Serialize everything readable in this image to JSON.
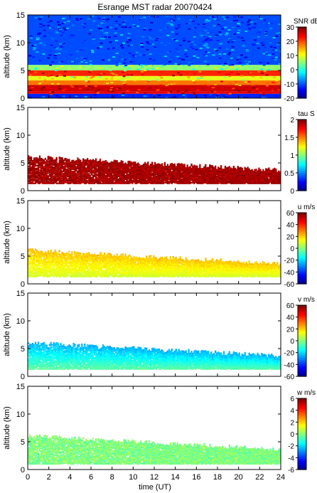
{
  "figure": {
    "title": "Esrange MST radar 20070424",
    "xlabel": "time (UT)",
    "ylabel": "altitude (km)"
  },
  "chart_data": [
    {
      "type": "heatmap",
      "quantity": "SNR",
      "colorbar_label": "SNR dB",
      "colorbar_ticks": [
        "30",
        "20",
        "10",
        "0",
        "-10",
        "-20"
      ],
      "clim": [
        -20,
        30
      ],
      "xlim": [
        0,
        24
      ],
      "ylim": [
        0,
        15
      ],
      "x_ticks": [
        0,
        2,
        4,
        6,
        8,
        10,
        12,
        14,
        16,
        18,
        20,
        22,
        24
      ],
      "y_ticks": [
        0,
        5,
        10,
        15
      ],
      "bands": [
        {
          "x": [
            0,
            24
          ],
          "y": [
            0.0,
            0.8
          ],
          "value": -12
        },
        {
          "x": [
            0,
            24
          ],
          "y": [
            0.8,
            1.2
          ],
          "value": 25
        },
        {
          "x": [
            0,
            24
          ],
          "y": [
            1.2,
            2.4
          ],
          "value": 26
        },
        {
          "x": [
            0,
            24
          ],
          "y": [
            2.4,
            3.2
          ],
          "value": 18
        },
        {
          "x": [
            0,
            24
          ],
          "y": [
            3.2,
            4.0
          ],
          "value": 10
        },
        {
          "x": [
            0,
            24
          ],
          "y": [
            4.0,
            5.0
          ],
          "value": 22
        },
        {
          "x": [
            0,
            24
          ],
          "y": [
            5.0,
            6.0
          ],
          "value": 6
        },
        {
          "x": [
            0,
            24
          ],
          "y": [
            6.0,
            15.0
          ],
          "value": -10
        }
      ]
    },
    {
      "type": "heatmap",
      "quantity": "tau",
      "colorbar_label": "tau S",
      "colorbar_ticks": [
        "2",
        "1.5",
        "1",
        "0.5",
        "0"
      ],
      "clim": [
        0,
        2
      ],
      "xlim": [
        0,
        24
      ],
      "ylim": [
        0,
        15
      ],
      "x_ticks": [
        0,
        2,
        4,
        6,
        8,
        10,
        12,
        14,
        16,
        18,
        20,
        22,
        24
      ],
      "y_ticks": [
        0,
        5,
        10,
        15
      ],
      "region": {
        "x": [
          0,
          24
        ],
        "y_bottom": 1.2,
        "y_top_start": 6.0,
        "y_top_end": 3.5
      },
      "value": 2
    },
    {
      "type": "heatmap",
      "quantity": "u",
      "colorbar_label": "u m/s",
      "colorbar_ticks": [
        "60",
        "40",
        "20",
        "0",
        "-20",
        "-40",
        "-60"
      ],
      "clim": [
        -60,
        60
      ],
      "xlim": [
        0,
        24
      ],
      "ylim": [
        0,
        15
      ],
      "x_ticks": [
        0,
        2,
        4,
        6,
        8,
        10,
        12,
        14,
        16,
        18,
        20,
        22,
        24
      ],
      "y_ticks": [
        0,
        5,
        10,
        15
      ],
      "region": {
        "x": [
          0,
          24
        ],
        "y_bottom": 1.2,
        "y_top_start": 6.0,
        "y_top_end": 3.5
      },
      "value_low": 10,
      "value_high": 22
    },
    {
      "type": "heatmap",
      "quantity": "v",
      "colorbar_label": "v m/s",
      "colorbar_ticks": [
        "60",
        "40",
        "20",
        "0",
        "-20",
        "-40",
        "-60"
      ],
      "clim": [
        -60,
        60
      ],
      "xlim": [
        0,
        24
      ],
      "ylim": [
        0,
        15
      ],
      "x_ticks": [
        0,
        2,
        4,
        6,
        8,
        10,
        12,
        14,
        16,
        18,
        20,
        22,
        24
      ],
      "y_ticks": [
        0,
        5,
        10,
        15
      ],
      "region": {
        "x": [
          0,
          24
        ],
        "y_bottom": 1.2,
        "y_top_start": 6.0,
        "y_top_end": 3.5
      },
      "value_low": -4,
      "value_high": -24
    },
    {
      "type": "heatmap",
      "quantity": "w",
      "colorbar_label": "w m/s",
      "colorbar_ticks": [
        "6",
        "4",
        "2",
        "0",
        "-2",
        "-4",
        "-6"
      ],
      "clim": [
        -6,
        6
      ],
      "xlim": [
        0,
        24
      ],
      "ylim": [
        0,
        15
      ],
      "x_ticks": [
        0,
        2,
        4,
        6,
        8,
        10,
        12,
        14,
        16,
        18,
        20,
        22,
        24
      ],
      "y_ticks": [
        0,
        5,
        10,
        15
      ],
      "region": {
        "x": [
          0,
          24
        ],
        "y_bottom": 0.9,
        "y_top_start": 6.0,
        "y_top_end": 3.5
      },
      "value": 0
    }
  ]
}
